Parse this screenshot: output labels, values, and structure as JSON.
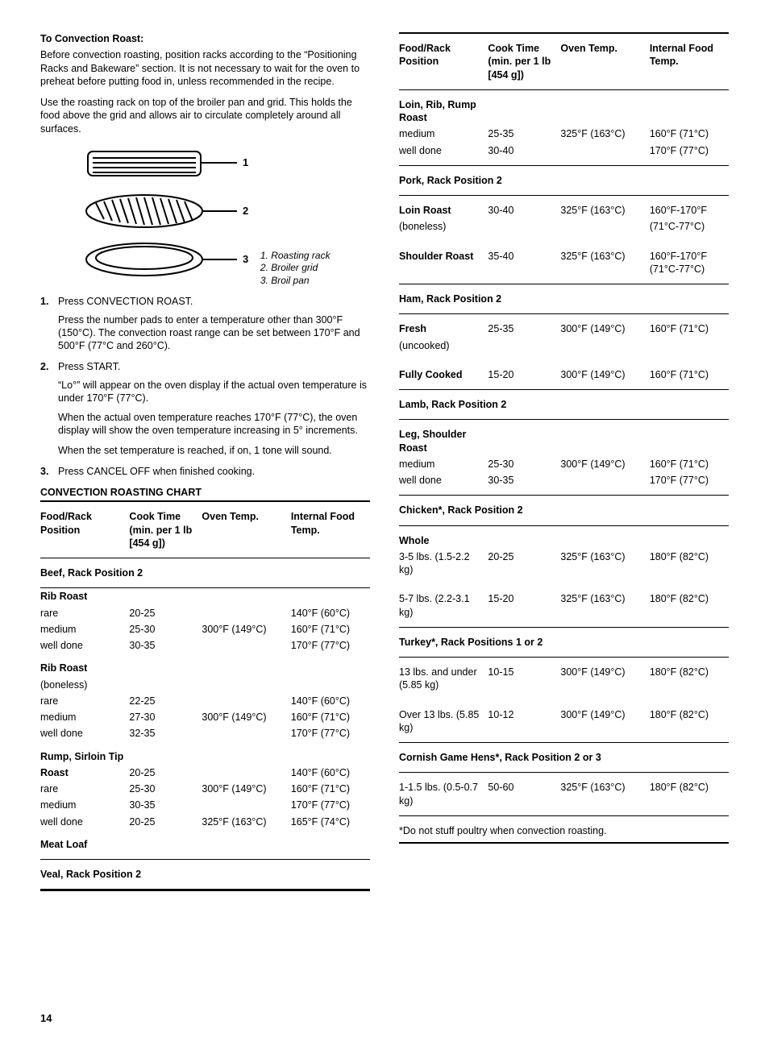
{
  "page_number": "14",
  "left": {
    "heading": "To Convection Roast:",
    "p1": "Before convection roasting, position racks according to the “Positioning Racks and Bakeware” section. It is not necessary to wait for the oven to preheat before putting food in, unless recommended in the recipe.",
    "p2": "Use the roasting rack on top of the broiler pan and grid. This holds the food above the grid and allows air to circulate completely around all surfaces.",
    "diagram": {
      "labels": [
        "1",
        "2",
        "3"
      ],
      "legend": [
        "1. Roasting rack",
        "2. Broiler grid",
        "3. Broil pan"
      ],
      "stroke": "#000000"
    },
    "steps": [
      {
        "n": "1.",
        "head": "Press CONVECTION ROAST.",
        "body": [
          "Press the number pads to enter a temperature other than 300°F (150°C). The convection roast range can be set between 170°F and 500°F (77°C and 260°C)."
        ]
      },
      {
        "n": "2.",
        "head": "Press START.",
        "body": [
          "“Lo°” will appear on the oven display if the actual oven temperature is under 170°F (77°C).",
          "When the actual oven temperature reaches 170°F (77°C), the oven display will show the oven temperature increasing in 5° increments.",
          "When the set temperature is reached, if on, 1 tone will sound."
        ]
      },
      {
        "n": "3.",
        "head": "Press CANCEL OFF when finished cooking.",
        "body": []
      }
    ],
    "chart_title": "CONVECTION ROASTING CHART",
    "headers": {
      "c1": "Food/Rack Position",
      "c2": "Cook Time (min. per 1 lb [454 g])",
      "c3": "Oven Temp.",
      "c4": "Internal Food Temp."
    },
    "table": [
      {
        "type": "section",
        "label": "Beef, Rack Position 2"
      },
      {
        "type": "grouphead",
        "c1": "Rib Roast"
      },
      {
        "type": "row",
        "c1": "rare",
        "c2": "20-25",
        "c3": "",
        "c4": "140°F (60°C)"
      },
      {
        "type": "row",
        "c1": "medium",
        "c2": "25-30",
        "c3": "300°F (149°C)",
        "c4": "160°F (71°C)"
      },
      {
        "type": "row",
        "c1": "well done",
        "c2": "30-35",
        "c3": "",
        "c4": "170°F (77°C)",
        "last": true
      },
      {
        "type": "grouphead",
        "c1": "Rib Roast"
      },
      {
        "type": "row",
        "c1": "(boneless)",
        "c2": "",
        "c3": "",
        "c4": ""
      },
      {
        "type": "row",
        "c1": "rare",
        "c2": "22-25",
        "c3": "",
        "c4": "140°F (60°C)"
      },
      {
        "type": "row",
        "c1": "medium",
        "c2": "27-30",
        "c3": "300°F (149°C)",
        "c4": "160°F (71°C)"
      },
      {
        "type": "row",
        "c1": "well done",
        "c2": "32-35",
        "c3": "",
        "c4": "170°F (77°C)",
        "last": true
      },
      {
        "type": "grouphead",
        "c1": "Rump, Sirloin Tip"
      },
      {
        "type": "row",
        "c1b": "Roast",
        "c2": "20-25",
        "c3": "",
        "c4": "140°F (60°C)"
      },
      {
        "type": "row",
        "c1": "rare",
        "c2": "25-30",
        "c3": "300°F (149°C)",
        "c4": "160°F (71°C)"
      },
      {
        "type": "row",
        "c1": "medium",
        "c2": "30-35",
        "c3": "",
        "c4": "170°F (77°C)"
      },
      {
        "type": "row",
        "c1": "well done",
        "c2": "20-25",
        "c3": "325°F (163°C)",
        "c4": "165°F (74°C)",
        "last": true
      },
      {
        "type": "grouphead",
        "c1": "Meat Loaf",
        "last": true
      },
      {
        "type": "section",
        "label": "Veal, Rack Position 2"
      },
      {
        "type": "end"
      }
    ]
  },
  "right": {
    "headers": {
      "c1": "Food/Rack Position",
      "c2": "Cook Time (min. per 1 lb [454 g])",
      "c3": "Oven Temp.",
      "c4": "Internal Food Temp."
    },
    "table": [
      {
        "type": "grouphead",
        "c1": "Loin, Rib, Rump Roast",
        "first": true
      },
      {
        "type": "row",
        "c1": "medium",
        "c2": "25-35",
        "c3": "325°F (163°C)",
        "c4": "160°F (71°C)"
      },
      {
        "type": "row",
        "c1": "well done",
        "c2": "30-40",
        "c3": "",
        "c4": "170°F (77°C)",
        "last": true
      },
      {
        "type": "section",
        "label": "Pork, Rack Position 2"
      },
      {
        "type": "row",
        "c1b": "Loin Roast",
        "c2": "30-40",
        "c3": "325°F (163°C)",
        "c4": "160°F-170°F",
        "first": true
      },
      {
        "type": "row",
        "c1": "(boneless)",
        "c2": "",
        "c3": "",
        "c4": "(71°C-77°C)",
        "last": true
      },
      {
        "type": "row",
        "c1b": "Shoulder Roast",
        "c2": "35-40",
        "c3": "325°F (163°C)",
        "c4": "160°F-170°F (71°C-77°C)",
        "first": true,
        "last": true
      },
      {
        "type": "section",
        "label": "Ham, Rack Position 2"
      },
      {
        "type": "row",
        "c1b": "Fresh",
        "c2": "25-35",
        "c3": "300°F (149°C)",
        "c4": "160°F (71°C)",
        "first": true
      },
      {
        "type": "row",
        "c1": "(uncooked)",
        "c2": "",
        "c3": "",
        "c4": "",
        "last": true
      },
      {
        "type": "row",
        "c1b": "Fully Cooked",
        "c2": "15-20",
        "c3": "300°F (149°C)",
        "c4": "160°F (71°C)",
        "first": true,
        "last": true
      },
      {
        "type": "section",
        "label": "Lamb, Rack Position 2"
      },
      {
        "type": "grouphead",
        "c1": "Leg, Shoulder Roast",
        "first": true
      },
      {
        "type": "row",
        "c1": "medium",
        "c2": "25-30",
        "c3": "300°F (149°C)",
        "c4": "160°F (71°C)"
      },
      {
        "type": "row",
        "c1": "well done",
        "c2": "30-35",
        "c3": "",
        "c4": "170°F (77°C)",
        "last": true
      },
      {
        "type": "section",
        "label": "Chicken*, Rack Position 2"
      },
      {
        "type": "grouphead",
        "c1": "Whole",
        "first": true
      },
      {
        "type": "row",
        "c1": "3-5 lbs. (1.5-2.2 kg)",
        "c2": "20-25",
        "c3": "325°F (163°C)",
        "c4": "180°F (82°C)",
        "last": true
      },
      {
        "type": "row",
        "c1": "5-7 lbs. (2.2-3.1 kg)",
        "c2": "15-20",
        "c3": "325°F (163°C)",
        "c4": "180°F (82°C)",
        "first": true,
        "last": true
      },
      {
        "type": "section",
        "label": "Turkey*, Rack Positions 1 or 2"
      },
      {
        "type": "row",
        "c1": "13 lbs. and under (5.85 kg)",
        "c2": "10-15",
        "c3": "300°F (149°C)",
        "c4": "180°F (82°C)",
        "first": true,
        "last": true
      },
      {
        "type": "row",
        "c1": "Over 13 lbs. (5.85 kg)",
        "c2": "10-12",
        "c3": "300°F (149°C)",
        "c4": "180°F (82°C)",
        "first": true,
        "last": true
      },
      {
        "type": "section",
        "label": "Cornish Game Hens*, Rack Position 2 or 3"
      },
      {
        "type": "row",
        "c1": "1-1.5 lbs. (0.5-0.7 kg)",
        "c2": "50-60",
        "c3": "325°F (163°C)",
        "c4": "180°F (82°C)",
        "first": true,
        "last": true
      },
      {
        "type": "thin"
      }
    ],
    "footnote": "*Do not stuff poultry when convection roasting."
  }
}
